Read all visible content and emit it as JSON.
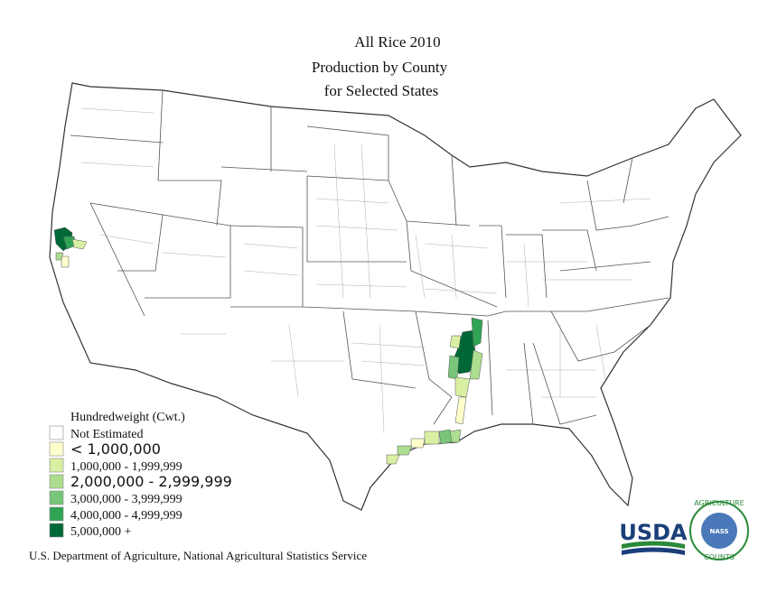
{
  "title": [
    "All Rice 2010",
    "Production by County",
    "for Selected States"
  ],
  "legend": {
    "title": "Hundredweight (Cwt.)",
    "items": [
      {
        "label": "Not Estimated",
        "color": "#ffffff"
      },
      {
        "label": "< 1,000,000",
        "color": "#ffffcc"
      },
      {
        "label": "1,000,000 - 1,999,999",
        "color": "#d9f0a3"
      },
      {
        "label": "2,000,000 - 2,999,999",
        "color": "#addd8e"
      },
      {
        "label": "3,000,000 - 3,999,999",
        "color": "#78c679"
      },
      {
        "label": "4,000,000 - 4,999,999",
        "color": "#31a354"
      },
      {
        "label": "5,000,000 +",
        "color": "#006837"
      }
    ]
  },
  "footer": "U.S. Department of Agriculture, National Agricultural Statistics Service",
  "logos": {
    "usda": "USDA",
    "nass_top": "AGRICULTURE",
    "nass": "NASS",
    "nass_bottom": "COUNTS"
  }
}
